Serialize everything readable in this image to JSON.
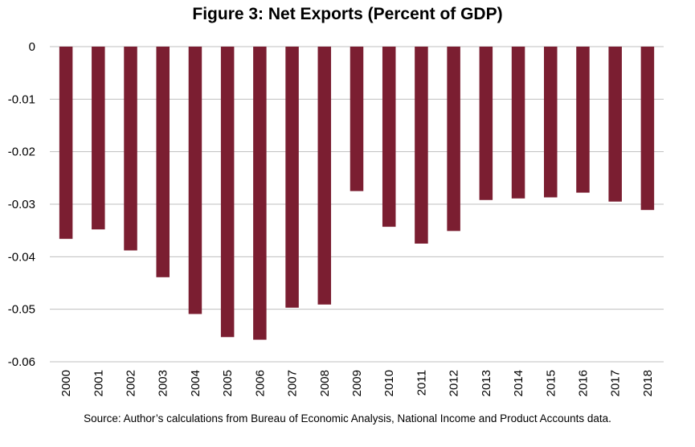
{
  "chart_data": {
    "type": "bar",
    "title": "Figure 3: Net Exports (Percent of GDP)",
    "source": "Source: Author’s calculations from Bureau of Economic Analysis, National Income and Product Accounts data.",
    "xlabel": "",
    "ylabel": "",
    "categories": [
      "2000",
      "2001",
      "2002",
      "2003",
      "2004",
      "2005",
      "2006",
      "2007",
      "2008",
      "2009",
      "2010",
      "2011",
      "2012",
      "2013",
      "2014",
      "2015",
      "2016",
      "2017",
      "2018"
    ],
    "values": [
      -0.0366,
      -0.0348,
      -0.0388,
      -0.0439,
      -0.0509,
      -0.0553,
      -0.0558,
      -0.0497,
      -0.0491,
      -0.0275,
      -0.0343,
      -0.0375,
      -0.0351,
      -0.0292,
      -0.0289,
      -0.0287,
      -0.0278,
      -0.0295,
      -0.0311
    ],
    "ylim": [
      -0.06,
      0
    ],
    "yticks": [
      0,
      -0.01,
      -0.02,
      -0.03,
      -0.04,
      -0.05,
      -0.06
    ],
    "ytick_labels": [
      "0",
      "-0.01",
      "-0.02",
      "-0.03",
      "-0.04",
      "-0.05",
      "-0.06"
    ],
    "grid": true,
    "legend": "none",
    "bar_color": "#7b1e31",
    "grid_color": "#bfbfbf"
  }
}
